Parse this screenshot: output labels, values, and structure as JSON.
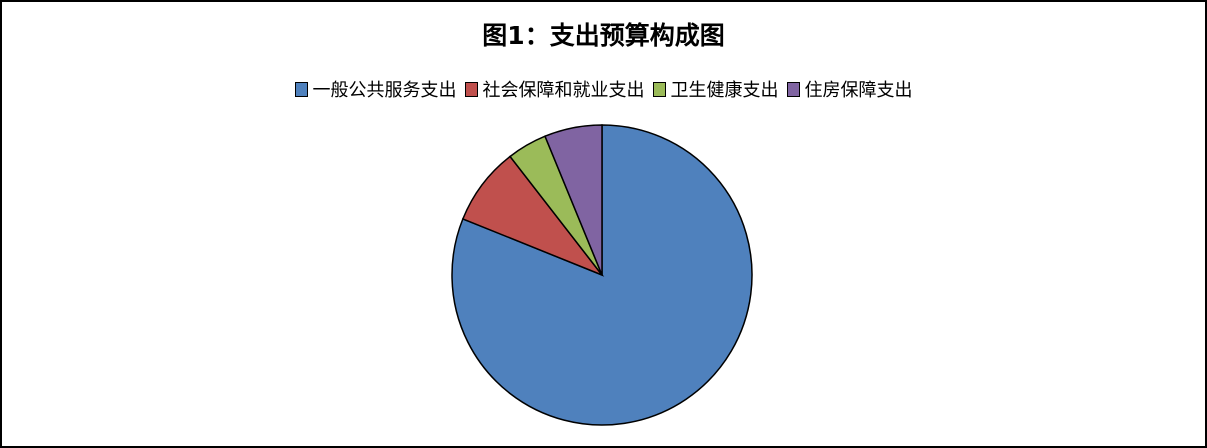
{
  "chart_data": {
    "type": "pie",
    "title": "图1：支出预算构成图",
    "legend_position": "top",
    "start_angle": "12 o'clock, clockwise",
    "series": [
      {
        "name": "一般公共服务支出",
        "value": 81.1,
        "color": "#4F81BD"
      },
      {
        "name": "社会保障和就业支出",
        "value": 8.4,
        "color": "#C0504D"
      },
      {
        "name": "卫生健康支出",
        "value": 4.3,
        "color": "#9BBB59"
      },
      {
        "name": "住房保障支出",
        "value": 6.2,
        "color": "#8064A2"
      }
    ],
    "unit": "%"
  }
}
